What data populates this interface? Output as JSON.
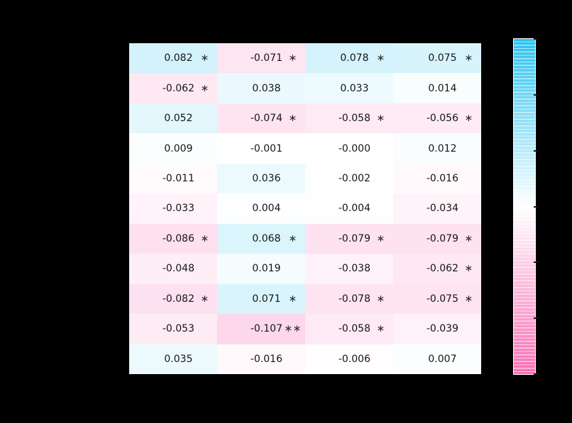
{
  "figure": {
    "background_color": "#000000",
    "axis_labels_visible": false,
    "title_visible": false
  },
  "chart_data": {
    "type": "heatmap",
    "n_rows": 11,
    "n_cols": 4,
    "row_labels_visible": false,
    "col_labels_visible": false,
    "annotation_format": "3 decimal places, significance stars to the right of value",
    "star_symbol": "∗",
    "rows": [
      [
        {
          "text": "0.082",
          "value": 0.082,
          "stars": "∗"
        },
        {
          "text": "-0.071",
          "value": -0.071,
          "stars": "∗"
        },
        {
          "text": "0.078",
          "value": 0.078,
          "stars": "∗"
        },
        {
          "text": "0.075",
          "value": 0.075,
          "stars": "∗"
        }
      ],
      [
        {
          "text": "-0.062",
          "value": -0.062,
          "stars": "∗"
        },
        {
          "text": "0.038",
          "value": 0.038,
          "stars": ""
        },
        {
          "text": "0.033",
          "value": 0.033,
          "stars": ""
        },
        {
          "text": "0.014",
          "value": 0.014,
          "stars": ""
        }
      ],
      [
        {
          "text": "0.052",
          "value": 0.052,
          "stars": ""
        },
        {
          "text": "-0.074",
          "value": -0.074,
          "stars": "∗"
        },
        {
          "text": "-0.058",
          "value": -0.058,
          "stars": "∗"
        },
        {
          "text": "-0.056",
          "value": -0.056,
          "stars": "∗"
        }
      ],
      [
        {
          "text": "0.009",
          "value": 0.009,
          "stars": ""
        },
        {
          "text": "-0.001",
          "value": -0.001,
          "stars": ""
        },
        {
          "text": "-0.000",
          "value": -0.0005,
          "stars": ""
        },
        {
          "text": "0.012",
          "value": 0.012,
          "stars": ""
        }
      ],
      [
        {
          "text": "-0.011",
          "value": -0.011,
          "stars": ""
        },
        {
          "text": "0.036",
          "value": 0.036,
          "stars": ""
        },
        {
          "text": "-0.002",
          "value": -0.002,
          "stars": ""
        },
        {
          "text": "-0.016",
          "value": -0.016,
          "stars": ""
        }
      ],
      [
        {
          "text": "-0.033",
          "value": -0.033,
          "stars": ""
        },
        {
          "text": "0.004",
          "value": 0.004,
          "stars": ""
        },
        {
          "text": "-0.004",
          "value": -0.004,
          "stars": ""
        },
        {
          "text": "-0.034",
          "value": -0.034,
          "stars": ""
        }
      ],
      [
        {
          "text": "-0.086",
          "value": -0.086,
          "stars": "∗"
        },
        {
          "text": "0.068",
          "value": 0.068,
          "stars": "∗"
        },
        {
          "text": "-0.079",
          "value": -0.079,
          "stars": "∗"
        },
        {
          "text": "-0.079",
          "value": -0.079,
          "stars": "∗"
        }
      ],
      [
        {
          "text": "-0.048",
          "value": -0.048,
          "stars": ""
        },
        {
          "text": "0.019",
          "value": 0.019,
          "stars": ""
        },
        {
          "text": "-0.038",
          "value": -0.038,
          "stars": ""
        },
        {
          "text": "-0.062",
          "value": -0.062,
          "stars": "∗"
        }
      ],
      [
        {
          "text": "-0.082",
          "value": -0.082,
          "stars": "∗"
        },
        {
          "text": "0.071",
          "value": 0.071,
          "stars": "∗"
        },
        {
          "text": "-0.078",
          "value": -0.078,
          "stars": "∗"
        },
        {
          "text": "-0.075",
          "value": -0.075,
          "stars": "∗"
        }
      ],
      [
        {
          "text": "-0.053",
          "value": -0.053,
          "stars": ""
        },
        {
          "text": "-0.107",
          "value": -0.107,
          "stars": "∗∗"
        },
        {
          "text": "-0.058",
          "value": -0.058,
          "stars": "∗"
        },
        {
          "text": "-0.039",
          "value": -0.039,
          "stars": ""
        }
      ],
      [
        {
          "text": "0.035",
          "value": 0.035,
          "stars": ""
        },
        {
          "text": "-0.016",
          "value": -0.016,
          "stars": ""
        },
        {
          "text": "-0.006",
          "value": -0.006,
          "stars": ""
        },
        {
          "text": "0.007",
          "value": 0.007,
          "stars": ""
        }
      ]
    ],
    "color_scale": {
      "type": "diverging",
      "positive_color": "#29c2f0",
      "mid_color": "#ffffff",
      "negative_color": "#f96eb4",
      "positive_rgb": [
        41,
        194,
        240
      ],
      "negative_rgb": [
        249,
        110,
        180
      ],
      "abs_max": 0.4
    },
    "colorbar": {
      "orientation": "vertical",
      "position": "right",
      "striped": true,
      "tick_count": 7,
      "tick_labels_visible": false,
      "top_color": "#29c2f0",
      "mid_color": "#ffffff",
      "bottom_color": "#f96eb4"
    }
  }
}
